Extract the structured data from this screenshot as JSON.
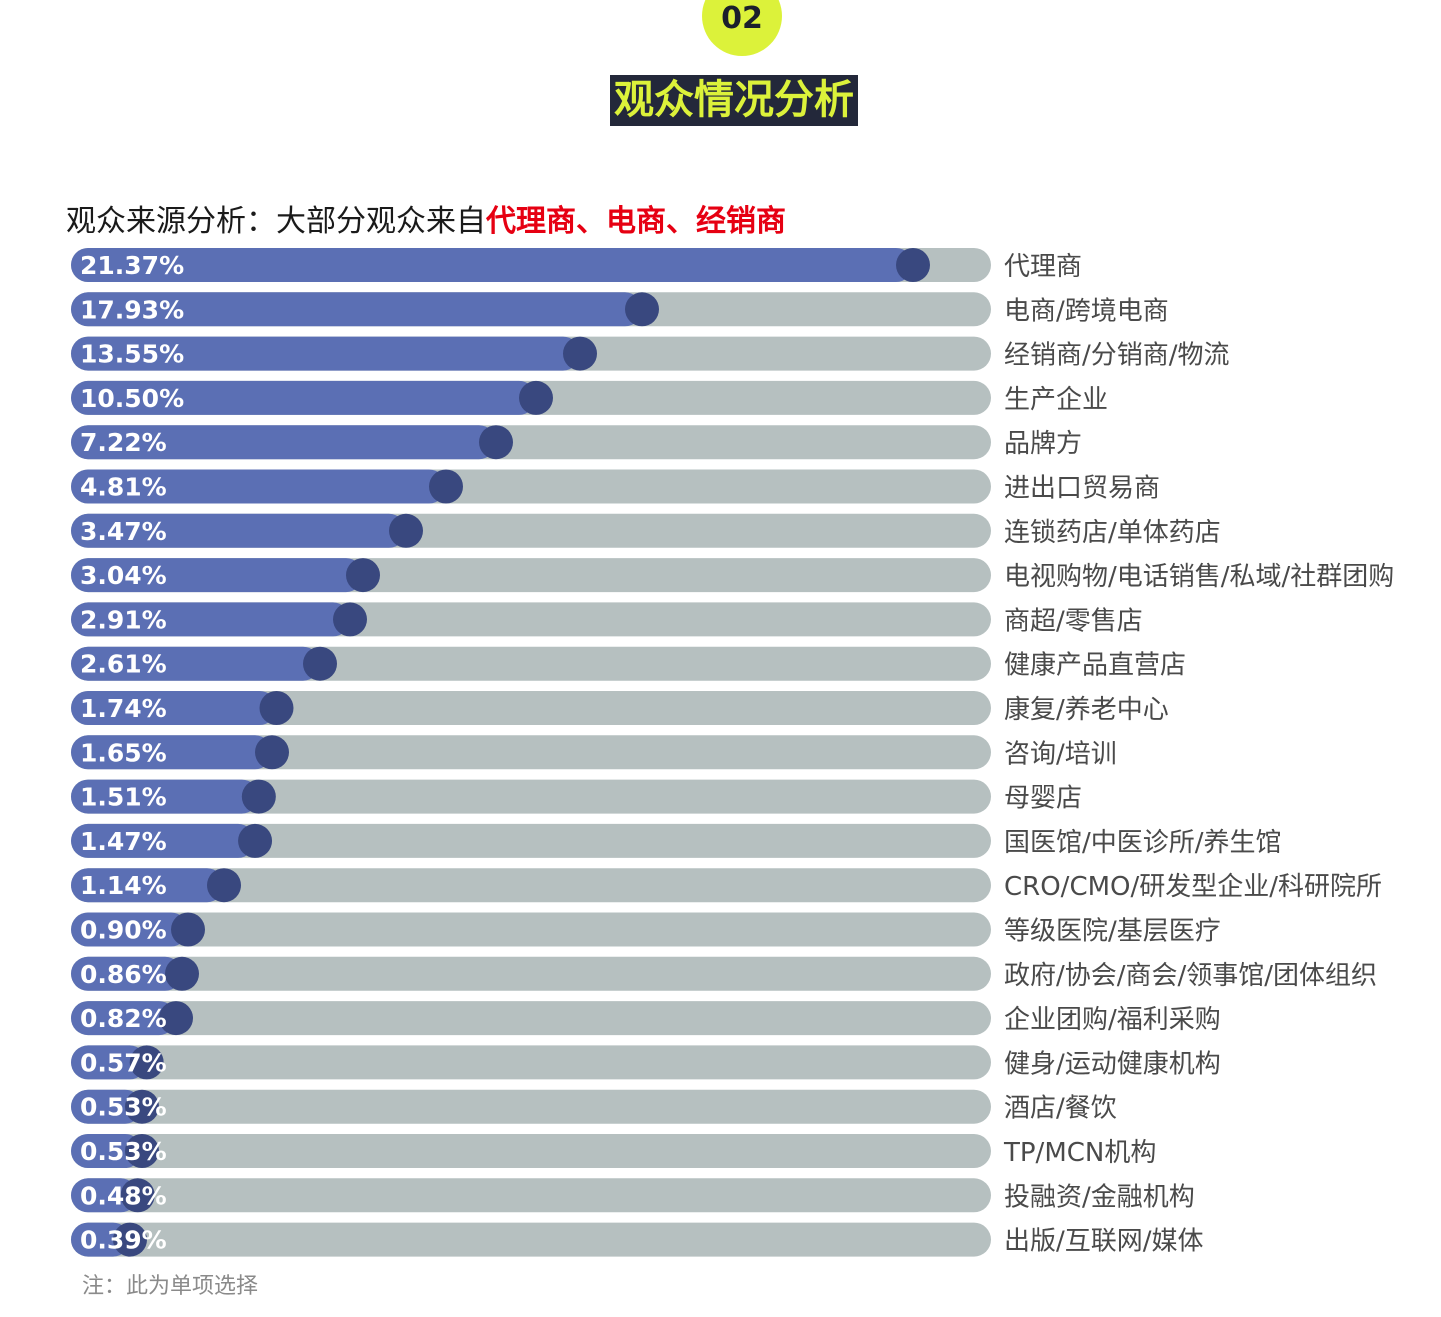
{
  "header": {
    "section_number": "02",
    "title": "观众情况分析"
  },
  "subtitle": {
    "prefix": "观众来源分析：大部分观众来自",
    "highlight": "代理商、电商、经销商"
  },
  "note": "注：此为单项选择",
  "colors": {
    "bar_fill": "#5b6fb4",
    "track": "#b6c0c0",
    "knob": "#39487f",
    "label_text": "#4a4a4a",
    "badge": "#dcf23a",
    "title_bg": "#23283a",
    "highlight": "#e60012"
  },
  "chart_data": {
    "type": "bar",
    "orientation": "horizontal",
    "categories": [
      "代理商",
      "电商/跨境电商",
      "经销商/分销商/物流",
      "生产企业",
      "品牌方",
      "进出口贸易商",
      "连锁药店/单体药店",
      "电视购物/电话销售/私域/社群团购",
      "商超/零售店",
      "健康产品直营店",
      "康复/养老中心",
      "咨询/培训",
      "母婴店",
      "国医馆/中医诊所/养生馆",
      "CRO/CMO/研发型企业/科研院所",
      "等级医院/基层医疗",
      "政府/协会/商会/领事馆/团体组织",
      "企业团购/福利采购",
      "健身/运动健康机构",
      "酒店/餐饮",
      "TP/MCN机构",
      "投融资/金融机构",
      "出版/互联网/媒体"
    ],
    "values": [
      21.37,
      17.93,
      13.55,
      10.5,
      7.22,
      4.81,
      3.47,
      3.04,
      2.91,
      2.61,
      1.74,
      1.65,
      1.51,
      1.47,
      1.14,
      0.9,
      0.86,
      0.82,
      0.57,
      0.53,
      0.53,
      0.48,
      0.39
    ],
    "value_labels": [
      "21.37%",
      "17.93%",
      "13.55%",
      "10.50%",
      "7.22%",
      "4.81%",
      "3.47%",
      "3.04%",
      "2.91%",
      "2.61%",
      "1.74%",
      "1.65%",
      "1.51%",
      "1.47%",
      "1.14%",
      "0.90%",
      "0.86%",
      "0.82%",
      "0.57%",
      "0.53%",
      "0.53%",
      "0.48%",
      "0.39%"
    ],
    "unit": "%"
  }
}
